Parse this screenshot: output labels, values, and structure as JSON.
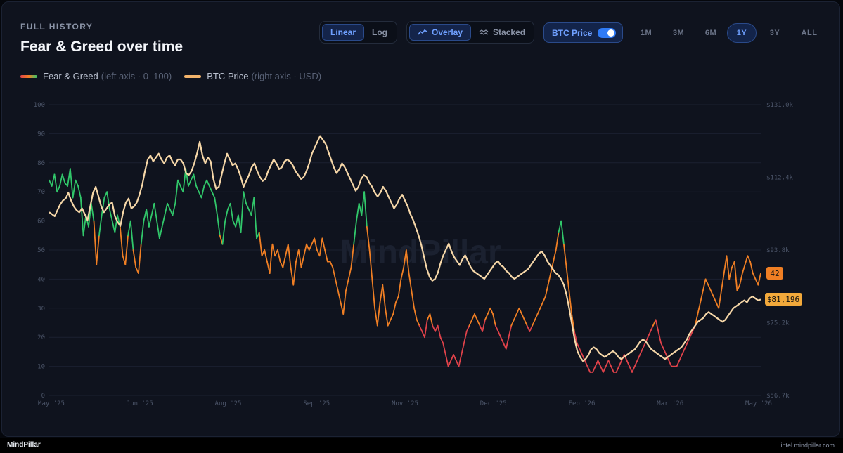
{
  "header": {
    "eyebrow": "FULL HISTORY",
    "title": "Fear & Greed over time"
  },
  "controls": {
    "scale": [
      {
        "label": "Linear",
        "active": true
      },
      {
        "label": "Log",
        "active": false
      }
    ],
    "view": [
      {
        "label": "Overlay",
        "icon": "line-chart-icon",
        "active": true
      },
      {
        "label": "Stacked",
        "icon": "area-chart-icon",
        "active": false
      }
    ],
    "btc_toggle": {
      "label": "BTC Price",
      "on": true
    },
    "ranges": [
      {
        "label": "1M",
        "active": false
      },
      {
        "label": "3M",
        "active": false
      },
      {
        "label": "6M",
        "active": false
      },
      {
        "label": "1Y",
        "active": true
      },
      {
        "label": "3Y",
        "active": false
      },
      {
        "label": "ALL",
        "active": false
      }
    ]
  },
  "legend": {
    "fg": {
      "label": "Fear & Greed",
      "note": "(left axis · 0–100)"
    },
    "btc": {
      "label": "BTC Price",
      "note": "(right axis · USD)"
    }
  },
  "watermark": "MindPillar",
  "footer": {
    "brand": "MindPillar",
    "url": "intel.mindpillar.com"
  },
  "colors": {
    "extreme_fear": "#e0424a",
    "fear": "#f07f24",
    "greed": "#31c76a",
    "btc": "#f6d7a8",
    "accent": "#6fa0ff"
  },
  "chart_data": {
    "type": "line",
    "x_tick_labels": [
      "May '25",
      "Jun '25",
      "Aug '25",
      "Sep '25",
      "Nov '25",
      "Dec '25",
      "Feb '26",
      "Mar '26",
      "May '26"
    ],
    "y_left_ticks": [
      0,
      10,
      20,
      30,
      40,
      50,
      60,
      70,
      80,
      90,
      100
    ],
    "y_right_tick_labels": [
      "$56.7k",
      "$75.2k",
      "$93.8k",
      "$112.4k",
      "$131.0k"
    ],
    "y_left_range": [
      0,
      100
    ],
    "y_right_range": [
      56.7,
      131.0
    ],
    "y_right_unit": "$k",
    "grid": true,
    "current": {
      "fear_greed": "42",
      "btc_price": "$81,196"
    },
    "series": [
      {
        "name": "Fear & Greed",
        "axis": "left",
        "x_range": [
          "May '25",
          "May '26"
        ],
        "values": [
          74,
          72,
          76,
          70,
          72,
          76,
          73,
          72,
          78,
          68,
          74,
          72,
          68,
          55,
          62,
          58,
          66,
          60,
          45,
          55,
          62,
          68,
          70,
          64,
          60,
          56,
          62,
          58,
          48,
          45,
          55,
          60,
          50,
          44,
          42,
          52,
          60,
          64,
          58,
          62,
          66,
          60,
          54,
          58,
          62,
          66,
          64,
          62,
          66,
          74,
          72,
          70,
          78,
          72,
          74,
          76,
          72,
          70,
          68,
          72,
          74,
          72,
          70,
          68,
          62,
          55,
          52,
          60,
          64,
          66,
          60,
          58,
          62,
          56,
          70,
          66,
          64,
          62,
          68,
          54,
          56,
          48,
          50,
          46,
          42,
          52,
          48,
          50,
          46,
          44,
          48,
          52,
          44,
          38,
          46,
          50,
          44,
          48,
          52,
          50,
          52,
          54,
          50,
          48,
          54,
          50,
          46,
          46,
          44,
          40,
          36,
          32,
          28,
          36,
          40,
          44,
          52,
          60,
          66,
          62,
          70,
          58,
          50,
          40,
          30,
          24,
          32,
          38,
          30,
          24,
          26,
          28,
          32,
          34,
          40,
          44,
          50,
          42,
          36,
          30,
          26,
          24,
          22,
          20,
          26,
          28,
          24,
          22,
          24,
          20,
          18,
          14,
          10,
          12,
          14,
          12,
          10,
          14,
          18,
          22,
          24,
          26,
          28,
          26,
          24,
          22,
          26,
          28,
          30,
          28,
          24,
          22,
          20,
          18,
          16,
          20,
          24,
          26,
          28,
          30,
          28,
          26,
          24,
          22,
          24,
          26,
          28,
          30,
          32,
          34,
          38,
          42,
          46,
          50,
          56,
          60,
          52,
          44,
          36,
          28,
          22,
          18,
          16,
          14,
          12,
          10,
          8,
          8,
          10,
          12,
          10,
          8,
          10,
          12,
          10,
          8,
          8,
          10,
          12,
          14,
          12,
          10,
          8,
          10,
          12,
          14,
          16,
          18,
          20,
          22,
          24,
          26,
          22,
          18,
          16,
          14,
          12,
          10,
          10,
          10,
          12,
          14,
          16,
          18,
          20,
          22,
          24,
          28,
          32,
          36,
          40,
          38,
          36,
          34,
          32,
          30,
          36,
          42,
          48,
          40,
          44,
          46,
          36,
          38,
          42,
          45,
          48,
          46,
          42,
          40,
          38,
          42
        ]
      },
      {
        "name": "BTC Price",
        "axis": "right",
        "x_range": [
          "May '25",
          "May '26"
        ],
        "values": [
          103.5,
          103.0,
          102.5,
          104.0,
          105.5,
          106.5,
          107.0,
          108.5,
          106.5,
          105.0,
          104.0,
          103.5,
          104.5,
          103.0,
          101.5,
          105.0,
          108.5,
          110.0,
          107.5,
          105.0,
          103.5,
          104.5,
          105.5,
          106.0,
          102.5,
          101.0,
          100.0,
          103.5,
          106.0,
          107.0,
          104.5,
          105.0,
          106.0,
          108.0,
          110.5,
          114.0,
          117.0,
          118.0,
          116.5,
          117.5,
          118.5,
          117.0,
          116.0,
          117.5,
          118.0,
          116.5,
          115.5,
          117.0,
          117.0,
          116.0,
          113.5,
          113.0,
          114.0,
          116.0,
          118.5,
          121.5,
          118.0,
          116.0,
          117.5,
          116.5,
          112.0,
          109.5,
          110.0,
          113.0,
          116.0,
          118.5,
          117.0,
          115.5,
          116.0,
          114.5,
          112.5,
          110.0,
          111.5,
          113.0,
          115.0,
          116.0,
          114.0,
          112.5,
          111.5,
          112.0,
          114.0,
          115.5,
          117.0,
          116.0,
          114.5,
          115.0,
          116.5,
          117.0,
          116.5,
          115.5,
          114.0,
          113.0,
          112.0,
          112.5,
          114.0,
          116.0,
          118.5,
          120.0,
          121.5,
          123.0,
          122.0,
          121.0,
          119.0,
          117.0,
          115.0,
          113.5,
          114.5,
          116.0,
          115.0,
          113.5,
          112.0,
          110.5,
          109.0,
          110.0,
          112.0,
          113.0,
          112.5,
          111.0,
          110.0,
          108.5,
          107.5,
          108.5,
          110.0,
          109.0,
          107.5,
          106.0,
          104.5,
          105.5,
          107.0,
          108.0,
          106.5,
          105.0,
          103.0,
          101.5,
          99.5,
          97.5,
          95.0,
          92.0,
          89.0,
          87.0,
          86.0,
          86.5,
          88.0,
          90.5,
          92.5,
          94.0,
          95.5,
          93.5,
          92.0,
          91.0,
          90.0,
          91.5,
          92.5,
          91.0,
          89.5,
          88.5,
          88.0,
          87.5,
          87.0,
          86.5,
          87.5,
          88.5,
          89.5,
          90.5,
          91.0,
          90.0,
          89.5,
          88.5,
          88.0,
          87.0,
          86.5,
          87.0,
          87.5,
          88.0,
          88.5,
          89.0,
          90.0,
          91.0,
          92.0,
          93.0,
          93.5,
          92.5,
          91.0,
          90.0,
          89.0,
          88.0,
          87.5,
          86.5,
          85.0,
          82.5,
          79.0,
          75.0,
          71.0,
          68.0,
          66.5,
          65.5,
          66.0,
          67.0,
          68.5,
          69.0,
          68.5,
          67.5,
          67.0,
          66.5,
          67.0,
          67.5,
          68.0,
          67.5,
          66.5,
          66.0,
          66.5,
          67.0,
          67.5,
          68.0,
          68.5,
          69.5,
          70.5,
          71.0,
          70.5,
          69.5,
          68.5,
          68.0,
          67.5,
          67.0,
          66.5,
          66.0,
          66.5,
          67.0,
          67.5,
          68.0,
          68.5,
          69.0,
          70.0,
          71.0,
          72.5,
          73.5,
          74.5,
          75.5,
          76.0,
          76.5,
          77.5,
          78.0,
          77.5,
          77.0,
          76.5,
          76.0,
          75.5,
          76.0,
          77.0,
          78.0,
          79.0,
          79.5,
          80.0,
          80.5,
          81.0,
          80.5,
          81.5,
          82.0,
          81.5,
          81.0,
          81.2
        ]
      }
    ]
  }
}
